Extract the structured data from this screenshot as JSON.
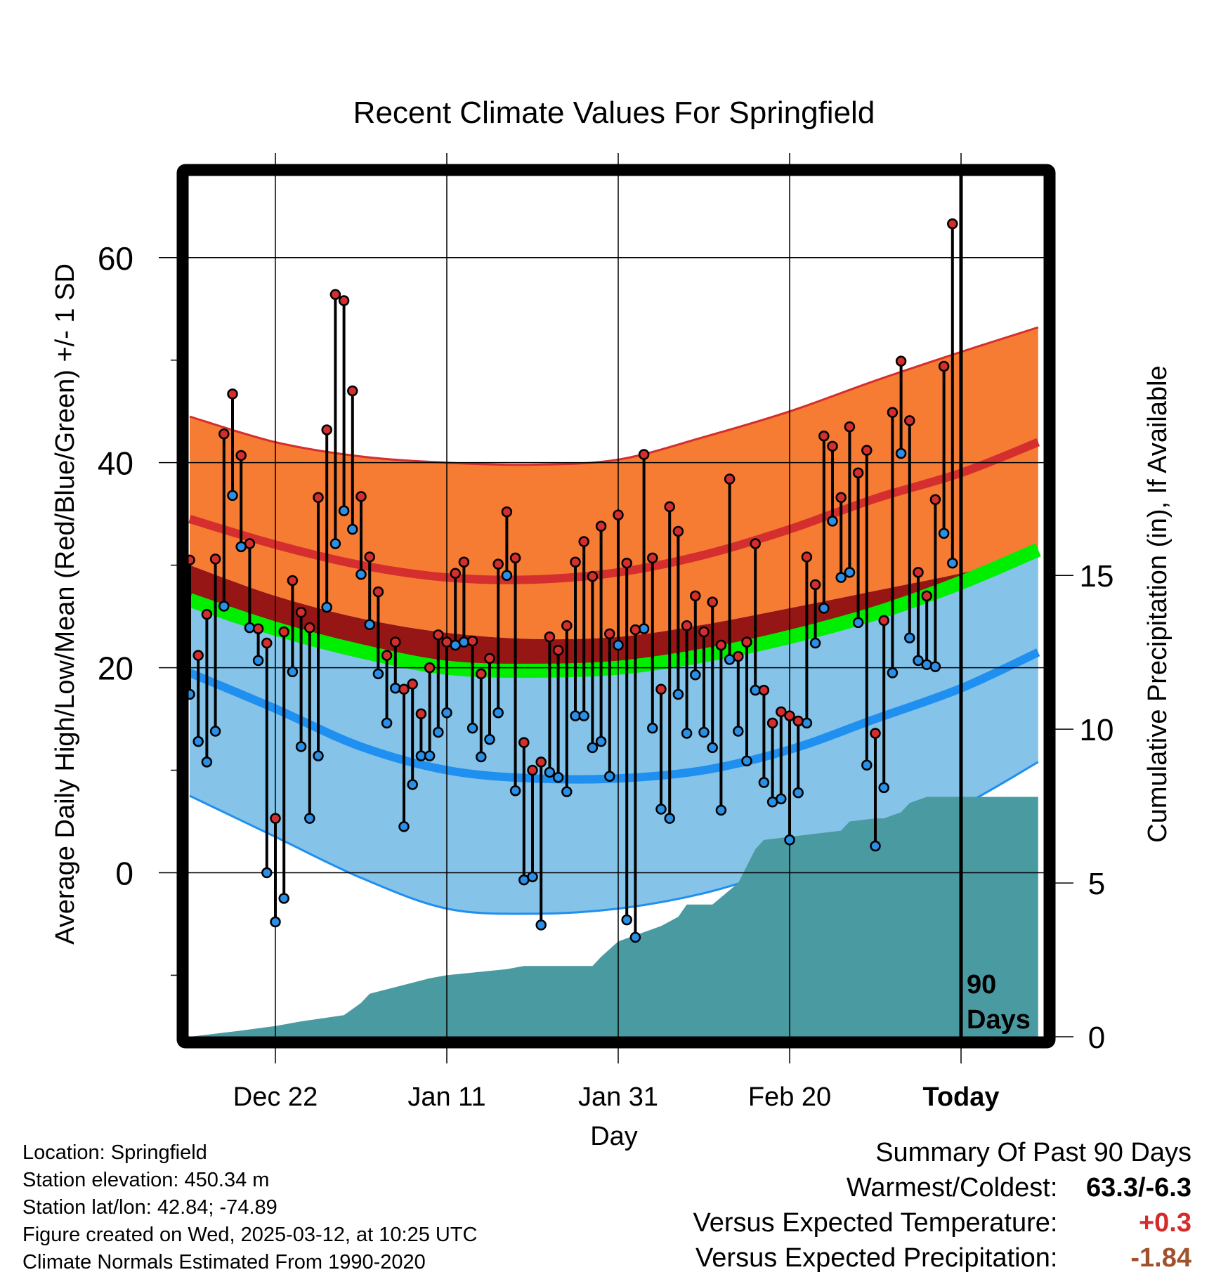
{
  "chart_data": {
    "type": "line",
    "title": "Recent Climate Values For Springfield",
    "xlabel": "Day",
    "ylabel": "Average Daily High/Low/Mean (Red/Blue/Green) +/- 1 SD",
    "y2label": "Cumulative Precipitation (in), If Available",
    "xlim_days": [
      -90,
      10
    ],
    "ylim": [
      -16,
      68
    ],
    "y2lim": [
      0,
      28
    ],
    "yticks": [
      0,
      20,
      40,
      60
    ],
    "y2ticks": [
      0,
      5,
      10,
      15
    ],
    "xticks": [
      {
        "day": -80,
        "label": "Dec 22"
      },
      {
        "day": -60,
        "label": "Jan 11"
      },
      {
        "day": -40,
        "label": "Jan 31"
      },
      {
        "day": -20,
        "label": "Feb 20"
      },
      {
        "day": 0,
        "label": "Today"
      }
    ],
    "grid": true,
    "window_label": "90 Days",
    "colors": {
      "high_band": "#f57c32",
      "high_line": "#d42e2e",
      "mean_band": "#961515",
      "mean_line": "#00ee00",
      "low_band": "#85c3e8",
      "low_line": "#1f8ff0",
      "obs_high": "#d42e2e",
      "obs_low": "#2a8fe6",
      "precip": "#4a9aa2"
    },
    "normals_days": [
      -90,
      -80,
      -70,
      -60,
      -50,
      -40,
      -30,
      -20,
      -10,
      0,
      9
    ],
    "normals": {
      "high_mean": [
        34.5,
        32.0,
        30.0,
        28.8,
        28.6,
        29.3,
        31.0,
        33.5,
        36.5,
        39.0,
        42.0
      ],
      "high_upper": [
        44.5,
        42.0,
        40.6,
        40.0,
        39.8,
        40.3,
        42.5,
        45.0,
        48.0,
        50.8,
        53.2
      ],
      "mean_upper": [
        30.0,
        27.0,
        24.8,
        23.4,
        22.8,
        23.0,
        24.2,
        25.8,
        27.5,
        29.2,
        31.0
      ],
      "mean_mean": [
        26.6,
        23.8,
        21.6,
        20.0,
        19.7,
        20.0,
        21.2,
        23.0,
        25.3,
        28.3,
        31.5
      ],
      "low_mean": [
        19.5,
        16.0,
        12.3,
        10.0,
        9.2,
        9.2,
        10.0,
        12.0,
        15.0,
        18.0,
        21.5
      ],
      "low_lower": [
        7.5,
        3.5,
        -0.5,
        -3.5,
        -4.0,
        -3.5,
        -2.0,
        0.5,
        3.0,
        6.5,
        10.8
      ]
    },
    "series": [
      {
        "name": "High",
        "x": [
          -90,
          -89,
          -88,
          -87,
          -86,
          -85,
          -84,
          -83,
          -82,
          -81,
          -80,
          -79,
          -78,
          -77,
          -76,
          -75,
          -74,
          -73,
          -72,
          -71,
          -70,
          -69,
          -68,
          -67,
          -66,
          -65,
          -64,
          -63,
          -62,
          -61,
          -60,
          -59,
          -58,
          -57,
          -56,
          -55,
          -54,
          -53,
          -52,
          -51,
          -50,
          -49,
          -48,
          -47,
          -46,
          -45,
          -44,
          -43,
          -42,
          -41,
          -40,
          -39,
          -38,
          -37,
          -36,
          -35,
          -34,
          -33,
          -32,
          -31,
          -30,
          -29,
          -28,
          -27,
          -26,
          -25,
          -24,
          -23,
          -22,
          -21,
          -20,
          -19,
          -18,
          -17,
          -16,
          -15,
          -14,
          -13,
          -12,
          -11,
          -10,
          -9,
          -8,
          -7,
          -6,
          -5,
          -4,
          -3,
          -2,
          -1
        ],
        "values": [
          30.5,
          21.2,
          25.2,
          30.6,
          42.8,
          46.7,
          40.7,
          32.1,
          23.8,
          22.4,
          5.3,
          23.5,
          28.5,
          25.4,
          23.9,
          36.6,
          43.2,
          56.4,
          55.8,
          47.0,
          36.7,
          30.8,
          27.4,
          21.2,
          22.5,
          17.9,
          18.4,
          15.5,
          20.0,
          23.2,
          22.5,
          29.2,
          30.3,
          22.6,
          19.4,
          20.9,
          30.1,
          35.2,
          30.7,
          12.7,
          10.0,
          10.8,
          23.0,
          21.7,
          24.1,
          30.3,
          32.3,
          28.9,
          33.8,
          23.3,
          34.9,
          30.2,
          23.7,
          40.8,
          30.7,
          17.9,
          35.7,
          33.3,
          24.1,
          27.0,
          23.5,
          26.4,
          22.2,
          38.4,
          21.1,
          22.5,
          32.1,
          17.8,
          14.6,
          15.7,
          15.3,
          14.8,
          30.8,
          28.1,
          42.6,
          41.6,
          36.6,
          43.5,
          39.0,
          41.2,
          13.6,
          24.6,
          44.9,
          49.9,
          44.1,
          29.3,
          27.0,
          36.4,
          49.4,
          63.3
        ]
      },
      {
        "name": "Low",
        "x": [
          -90,
          -89,
          -88,
          -87,
          -86,
          -85,
          -84,
          -83,
          -82,
          -81,
          -80,
          -79,
          -78,
          -77,
          -76,
          -75,
          -74,
          -73,
          -72,
          -71,
          -70,
          -69,
          -68,
          -67,
          -66,
          -65,
          -64,
          -63,
          -62,
          -61,
          -60,
          -59,
          -58,
          -57,
          -56,
          -55,
          -54,
          -53,
          -52,
          -51,
          -50,
          -49,
          -48,
          -47,
          -46,
          -45,
          -44,
          -43,
          -42,
          -41,
          -40,
          -39,
          -38,
          -37,
          -36,
          -35,
          -34,
          -33,
          -32,
          -31,
          -30,
          -29,
          -28,
          -27,
          -26,
          -25,
          -24,
          -23,
          -22,
          -21,
          -20,
          -19,
          -18,
          -17,
          -16,
          -15,
          -14,
          -13,
          -12,
          -11,
          -10,
          -9,
          -8,
          -7,
          -6,
          -5,
          -4,
          -3,
          -2,
          -1
        ],
        "values": [
          17.4,
          12.8,
          10.8,
          13.8,
          26.0,
          36.8,
          31.8,
          23.9,
          20.7,
          0.0,
          -4.8,
          -2.5,
          19.6,
          12.3,
          5.3,
          11.4,
          25.9,
          32.1,
          35.3,
          33.5,
          29.1,
          24.2,
          19.4,
          14.6,
          18.0,
          4.5,
          8.6,
          11.4,
          11.4,
          13.7,
          15.6,
          22.2,
          22.5,
          14.1,
          11.3,
          13.0,
          15.6,
          29.0,
          8.0,
          -0.7,
          -0.4,
          -5.1,
          9.8,
          9.3,
          7.9,
          15.3,
          15.3,
          12.2,
          12.8,
          9.4,
          22.2,
          -4.6,
          -6.3,
          23.8,
          14.1,
          6.2,
          5.3,
          17.4,
          13.6,
          19.3,
          13.7,
          12.2,
          6.1,
          20.8,
          13.8,
          10.9,
          17.8,
          8.8,
          6.9,
          7.2,
          3.2,
          7.8,
          14.6,
          22.4,
          25.8,
          34.3,
          28.8,
          29.3,
          24.4,
          10.5,
          2.6,
          8.3,
          19.5,
          40.9,
          22.9,
          20.7,
          20.3,
          20.1,
          33.1,
          30.2
        ]
      }
    ],
    "precip_cumulative": {
      "x": [
        -90,
        -84,
        -80,
        -77,
        -72,
        -70,
        -69,
        -62,
        -60,
        -53,
        -51,
        -43,
        -42,
        -40,
        -38,
        -36,
        -35,
        -33,
        -32,
        -29,
        -26,
        -24,
        -23,
        -20,
        -14,
        -13,
        -10,
        -9,
        -7,
        -6,
        -4,
        9
      ],
      "values": [
        0.0,
        0.2,
        0.35,
        0.5,
        0.7,
        1.1,
        1.4,
        1.9,
        2.0,
        2.2,
        2.3,
        2.3,
        2.6,
        3.1,
        3.3,
        3.5,
        3.6,
        3.9,
        4.3,
        4.3,
        5.0,
        6.1,
        6.4,
        6.5,
        6.7,
        7.0,
        7.1,
        7.1,
        7.3,
        7.6,
        7.8,
        7.8
      ]
    }
  },
  "footer": {
    "location": "Location: Springfield",
    "elevation": "Station elevation: 450.34 m",
    "latlon": "Station lat/lon: 42.84; -74.89",
    "created": "Figure created on Wed, 2025-03-12, at 10:25 UTC",
    "normals": "Climate Normals Estimated From 1990-2020"
  },
  "summary": {
    "title": "Summary Of Past 90 Days",
    "warmest_label": "Warmest/Coldest:",
    "warmest_value": "63.3/-6.3",
    "temp_label": "Versus Expected Temperature:",
    "temp_value": "+0.3",
    "precip_label": "Versus Expected Precipitation:",
    "precip_value": "-1.84"
  }
}
